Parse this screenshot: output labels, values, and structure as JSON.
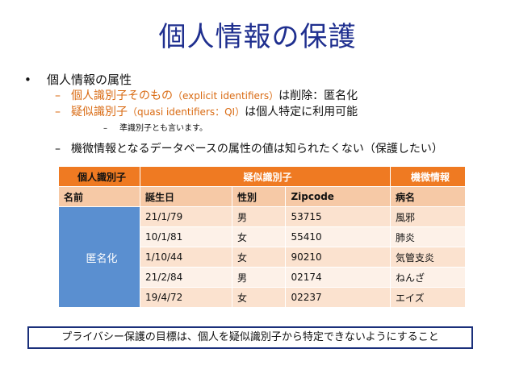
{
  "slide": {
    "title": "個人情報の保護",
    "bullet_1": "個人情報の属性",
    "sub_1_prefix": "個人識別子そのもの",
    "sub_1_paren": "（explicit identifiers）",
    "sub_1_suffix": "は削除：匿名化",
    "sub_2_prefix": "疑似識別子",
    "sub_2_paren": "（quasi identifiers：QI）",
    "sub_2_suffix": "は個人特定に利用可能",
    "sub_2_note": "準識別子とも言います。",
    "sub_3": "機微情報となるデータベースの属性の値は知られたくない（保護したい）",
    "dash": "–",
    "bullet_mark": "•"
  },
  "table": {
    "group_headers": {
      "identifier": "個人識別子",
      "quasi": "疑似識別子",
      "sensitive": "機微情報"
    },
    "columns": [
      "名前",
      "誕生日",
      "性別",
      "Zipcode",
      "病名"
    ],
    "anonymized_label": "匿名化",
    "rows": [
      [
        "21/1/79",
        "男",
        "53715",
        "風邪"
      ],
      [
        "10/1/81",
        "女",
        "55410",
        "肺炎"
      ],
      [
        "1/10/44",
        "女",
        "90210",
        "気管支炎"
      ],
      [
        "21/2/84",
        "男",
        "02174",
        "ねんざ"
      ],
      [
        "19/4/72",
        "女",
        "02237",
        "エイズ"
      ]
    ]
  },
  "goal_box": "プライバシー保護の目標は、個人を疑似識別子から特定できないようにすること",
  "colors": {
    "title": "#1f2f8f",
    "accent_orange": "#d96a12",
    "header_fill": "#ef7a22",
    "subheader_fill": "#f6c9a6",
    "row_fill": "#fbe2cf",
    "row_alt_fill": "#fdf1e8",
    "anon_fill": "#5a8fd0",
    "goal_border": "#1a2f7a"
  }
}
